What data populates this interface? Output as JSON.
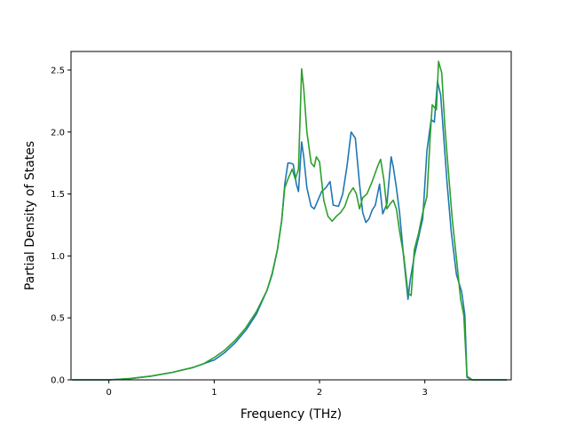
{
  "chart_data": {
    "type": "line",
    "title": "",
    "xlabel": "Frequency (THz)",
    "ylabel": "Partial Density of States",
    "xlim": [
      -0.36,
      3.82
    ],
    "ylim": [
      0.0,
      2.65
    ],
    "xticks": [
      0,
      1,
      2,
      3
    ],
    "xtick_labels": [
      "0",
      "1",
      "2",
      "3"
    ],
    "yticks": [
      0.0,
      0.5,
      1.0,
      1.5,
      2.0,
      2.5
    ],
    "ytick_labels": [
      "0.0",
      "0.5",
      "1.0",
      "1.5",
      "2.0",
      "2.5"
    ],
    "grid": false,
    "legend": false,
    "series": [
      {
        "color": "#1f77b4",
        "x": [
          -0.35,
          0.0,
          0.2,
          0.4,
          0.6,
          0.8,
          1.0,
          1.1,
          1.2,
          1.3,
          1.4,
          1.5,
          1.55,
          1.6,
          1.64,
          1.67,
          1.7,
          1.72,
          1.75,
          1.78,
          1.8,
          1.83,
          1.85,
          1.88,
          1.92,
          1.95,
          1.98,
          2.02,
          2.06,
          2.1,
          2.13,
          2.18,
          2.22,
          2.26,
          2.3,
          2.34,
          2.38,
          2.41,
          2.44,
          2.47,
          2.5,
          2.53,
          2.57,
          2.6,
          2.64,
          2.68,
          2.7,
          2.73,
          2.76,
          2.8,
          2.84,
          2.86,
          2.9,
          2.94,
          2.98,
          3.02,
          3.06,
          3.09,
          3.12,
          3.15,
          3.18,
          3.21,
          3.25,
          3.3,
          3.35,
          3.38,
          3.4,
          3.45,
          3.6,
          3.78
        ],
        "y": [
          0.0,
          0.0,
          0.01,
          0.03,
          0.06,
          0.1,
          0.16,
          0.22,
          0.3,
          0.4,
          0.53,
          0.72,
          0.85,
          1.05,
          1.28,
          1.58,
          1.75,
          1.75,
          1.74,
          1.58,
          1.52,
          1.92,
          1.8,
          1.55,
          1.4,
          1.38,
          1.44,
          1.52,
          1.55,
          1.6,
          1.41,
          1.4,
          1.5,
          1.72,
          2.0,
          1.95,
          1.58,
          1.35,
          1.27,
          1.3,
          1.37,
          1.41,
          1.58,
          1.34,
          1.42,
          1.8,
          1.72,
          1.55,
          1.35,
          0.98,
          0.65,
          0.8,
          1.0,
          1.15,
          1.3,
          1.85,
          2.1,
          2.08,
          2.41,
          2.3,
          1.95,
          1.6,
          1.2,
          0.85,
          0.71,
          0.52,
          0.02,
          0.0,
          0.0,
          0.0
        ]
      },
      {
        "color": "#2ca02c",
        "x": [
          -0.35,
          0.0,
          0.2,
          0.4,
          0.6,
          0.8,
          0.9,
          1.0,
          1.1,
          1.2,
          1.3,
          1.4,
          1.5,
          1.55,
          1.6,
          1.64,
          1.67,
          1.7,
          1.74,
          1.77,
          1.8,
          1.83,
          1.85,
          1.88,
          1.92,
          1.95,
          1.97,
          2.0,
          2.04,
          2.08,
          2.12,
          2.16,
          2.2,
          2.24,
          2.28,
          2.32,
          2.35,
          2.38,
          2.41,
          2.45,
          2.5,
          2.55,
          2.58,
          2.61,
          2.64,
          2.67,
          2.7,
          2.73,
          2.76,
          2.8,
          2.84,
          2.87,
          2.9,
          2.94,
          2.98,
          3.02,
          3.05,
          3.07,
          3.09,
          3.11,
          3.13,
          3.16,
          3.19,
          3.22,
          3.26,
          3.3,
          3.34,
          3.37,
          3.4,
          3.45,
          3.6,
          3.78
        ],
        "y": [
          0.0,
          0.0,
          0.01,
          0.03,
          0.06,
          0.1,
          0.13,
          0.18,
          0.24,
          0.32,
          0.42,
          0.55,
          0.72,
          0.86,
          1.05,
          1.28,
          1.55,
          1.62,
          1.7,
          1.62,
          1.7,
          2.51,
          2.35,
          2.0,
          1.75,
          1.72,
          1.8,
          1.76,
          1.45,
          1.32,
          1.28,
          1.32,
          1.35,
          1.4,
          1.5,
          1.55,
          1.5,
          1.38,
          1.47,
          1.5,
          1.6,
          1.72,
          1.78,
          1.62,
          1.38,
          1.42,
          1.45,
          1.38,
          1.2,
          1.0,
          0.7,
          0.68,
          1.05,
          1.18,
          1.35,
          1.48,
          1.95,
          2.22,
          2.2,
          2.18,
          2.57,
          2.48,
          2.05,
          1.72,
          1.3,
          0.98,
          0.65,
          0.52,
          0.03,
          0.0,
          0.0,
          0.0
        ]
      }
    ]
  }
}
